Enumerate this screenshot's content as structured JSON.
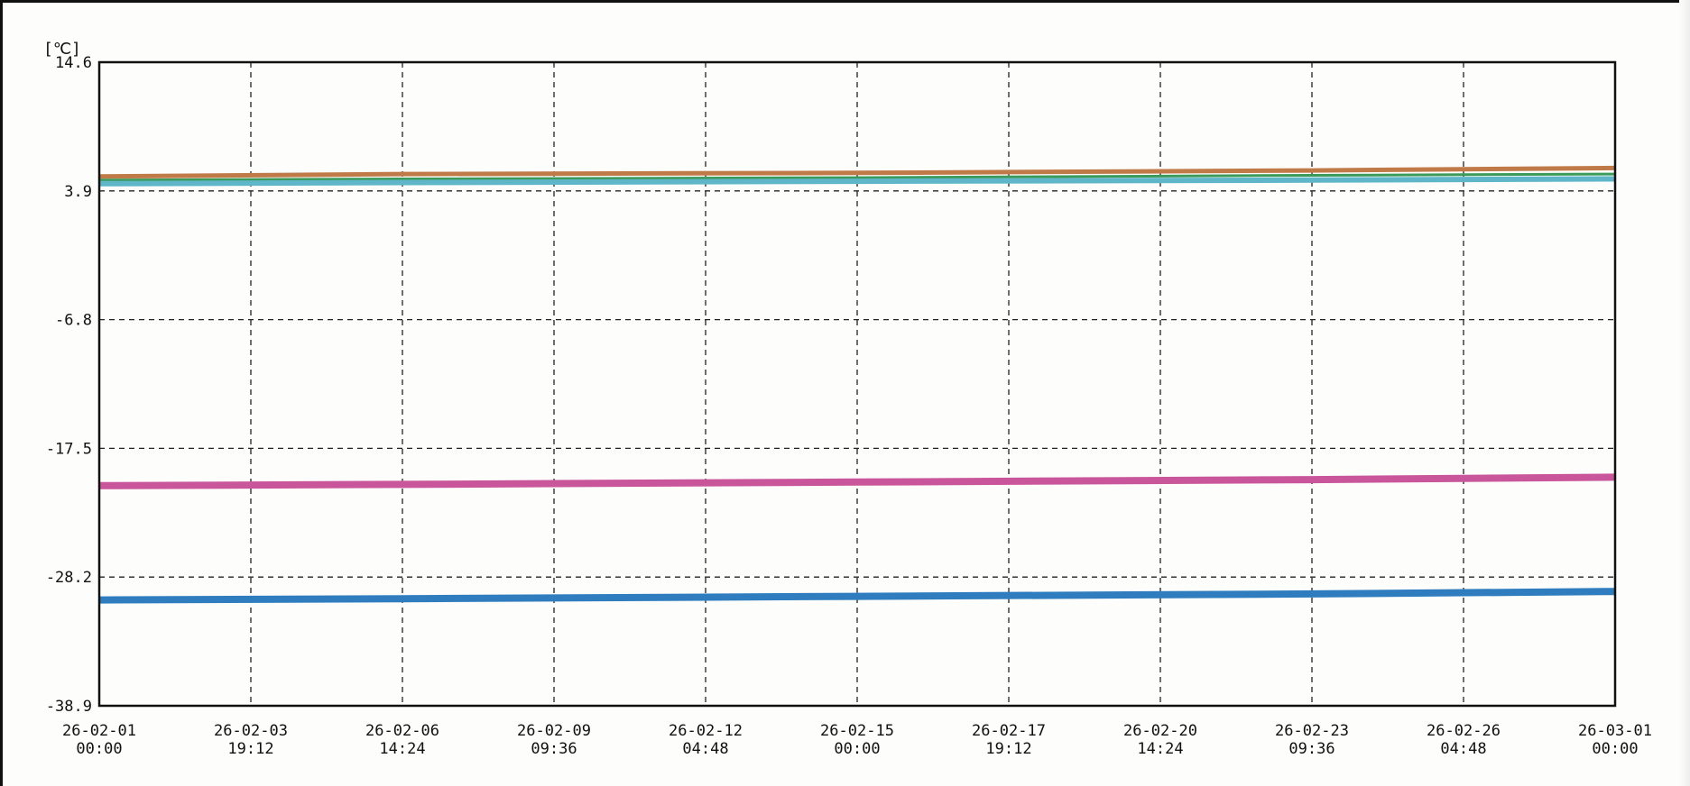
{
  "chart_data": {
    "type": "line",
    "unit_label": "[℃]",
    "ylim": [
      -38.9,
      14.6
    ],
    "y_ticks": [
      "14.6",
      "3.9",
      "-6.8",
      "-17.5",
      "-28.2",
      "-38.9"
    ],
    "x_ticks": [
      {
        "date": "26-02-01",
        "time": "00:00"
      },
      {
        "date": "26-02-03",
        "time": "19:12"
      },
      {
        "date": "26-02-06",
        "time": "14:24"
      },
      {
        "date": "26-02-09",
        "time": "09:36"
      },
      {
        "date": "26-02-12",
        "time": "04:48"
      },
      {
        "date": "26-02-15",
        "time": "00:00"
      },
      {
        "date": "26-02-17",
        "time": "19:12"
      },
      {
        "date": "26-02-20",
        "time": "14:24"
      },
      {
        "date": "26-02-23",
        "time": "09:36"
      },
      {
        "date": "26-02-26",
        "time": "04:48"
      },
      {
        "date": "26-03-01",
        "time": "00:00"
      }
    ],
    "grid": true,
    "series": [
      {
        "color": "#c07a48",
        "x": [
          "26-02-01 00:00",
          "26-02-06 14:24",
          "26-02-15 00:00",
          "26-02-23 09:36",
          "26-03-01 00:00"
        ],
        "values": [
          5.1,
          5.3,
          5.4,
          5.6,
          5.8
        ]
      },
      {
        "color": "#3a9a5a",
        "x": [
          "26-02-01 00:00",
          "26-02-06 14:24",
          "26-02-15 00:00",
          "26-02-23 09:36",
          "26-03-01 00:00"
        ],
        "values": [
          4.8,
          4.9,
          5.0,
          5.2,
          5.3
        ]
      },
      {
        "color": "#5fb6c9",
        "x": [
          "26-02-01 00:00",
          "26-02-06 14:24",
          "26-02-15 00:00",
          "26-02-23 09:36",
          "26-03-01 00:00"
        ],
        "values": [
          4.5,
          4.6,
          4.7,
          4.8,
          4.9
        ]
      },
      {
        "color": "#c9559a",
        "x": [
          "26-02-01 00:00",
          "26-02-06 14:24",
          "26-02-15 00:00",
          "26-02-23 09:36",
          "26-03-01 00:00"
        ],
        "values": [
          -20.6,
          -20.5,
          -20.3,
          -20.1,
          -19.9
        ]
      },
      {
        "color": "#2f7dbe",
        "x": [
          "26-02-01 00:00",
          "26-02-06 14:24",
          "26-02-15 00:00",
          "26-02-23 09:36",
          "26-03-01 00:00"
        ],
        "values": [
          -30.1,
          -30.0,
          -29.8,
          -29.6,
          -29.4
        ]
      }
    ]
  }
}
